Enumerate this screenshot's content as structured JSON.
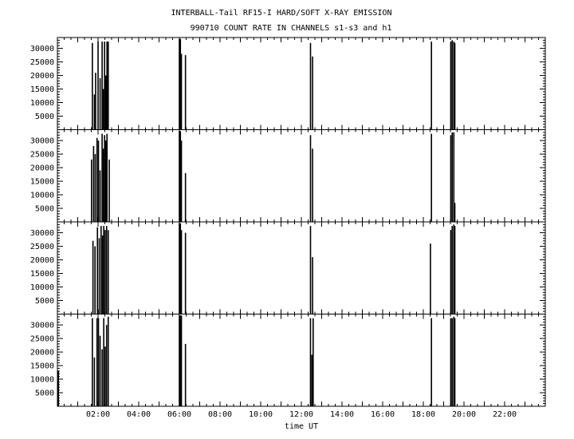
{
  "chart_data": {
    "type": "bar",
    "title": "INTERBALL-Tail RF15-I HARD/SOFT X-RAY EMISSION",
    "subtitle": "990710  COUNT RATE IN CHANNELS s1-s3 and h1",
    "xlabel": "time UT",
    "x_unit": "hours UT",
    "xlim": [
      0,
      24
    ],
    "ylim": [
      0,
      34000
    ],
    "x_ticks": [
      {
        "h": 2,
        "label": "02:00"
      },
      {
        "h": 4,
        "label": "04:00"
      },
      {
        "h": 6,
        "label": "06:00"
      },
      {
        "h": 8,
        "label": "08:00"
      },
      {
        "h": 10,
        "label": "10:00"
      },
      {
        "h": 12,
        "label": "12:00"
      },
      {
        "h": 14,
        "label": "14:00"
      },
      {
        "h": 16,
        "label": "16:00"
      },
      {
        "h": 18,
        "label": "18:00"
      },
      {
        "h": 20,
        "label": "20:00"
      },
      {
        "h": 22,
        "label": "22:00"
      }
    ],
    "y_ticks": [
      {
        "v": 5000,
        "label": "5000"
      },
      {
        "v": 10000,
        "label": "10000"
      },
      {
        "v": 15000,
        "label": "15000"
      },
      {
        "v": 20000,
        "label": "20000"
      },
      {
        "v": 25000,
        "label": "25000"
      },
      {
        "v": 30000,
        "label": "30000"
      }
    ],
    "panels": [
      {
        "spikes": [
          {
            "x": 1.72,
            "y": 32000
          },
          {
            "x": 1.82,
            "y": 13000
          },
          {
            "x": 1.88,
            "y": 21000
          },
          {
            "x": 2.0,
            "y": 32500
          },
          {
            "x": 2.1,
            "y": 19000
          },
          {
            "x": 2.2,
            "y": 32500
          },
          {
            "x": 2.26,
            "y": 15000
          },
          {
            "x": 2.32,
            "y": 32500
          },
          {
            "x": 2.38,
            "y": 20000
          },
          {
            "x": 2.44,
            "y": 32500
          },
          {
            "x": 2.5,
            "y": 32500
          },
          {
            "x": 6.0,
            "y": 33500
          },
          {
            "x": 6.05,
            "y": 33500
          },
          {
            "x": 6.1,
            "y": 28000
          },
          {
            "x": 6.3,
            "y": 27500
          },
          {
            "x": 12.45,
            "y": 32000
          },
          {
            "x": 12.55,
            "y": 27000
          },
          {
            "x": 18.4,
            "y": 32500
          },
          {
            "x": 19.35,
            "y": 32500
          },
          {
            "x": 19.42,
            "y": 33000
          },
          {
            "x": 19.5,
            "y": 32500
          },
          {
            "x": 19.55,
            "y": 32000
          }
        ]
      },
      {
        "spikes": [
          {
            "x": 1.68,
            "y": 23000
          },
          {
            "x": 1.78,
            "y": 28000
          },
          {
            "x": 1.86,
            "y": 25000
          },
          {
            "x": 1.95,
            "y": 31000
          },
          {
            "x": 2.02,
            "y": 30000
          },
          {
            "x": 2.1,
            "y": 19000
          },
          {
            "x": 2.2,
            "y": 32500
          },
          {
            "x": 2.26,
            "y": 27000
          },
          {
            "x": 2.32,
            "y": 32000
          },
          {
            "x": 2.38,
            "y": 30000
          },
          {
            "x": 2.44,
            "y": 32500
          },
          {
            "x": 2.55,
            "y": 23000
          },
          {
            "x": 6.0,
            "y": 33500
          },
          {
            "x": 6.05,
            "y": 33500
          },
          {
            "x": 6.1,
            "y": 30000
          },
          {
            "x": 6.3,
            "y": 18000
          },
          {
            "x": 12.45,
            "y": 32000
          },
          {
            "x": 12.55,
            "y": 27000
          },
          {
            "x": 18.4,
            "y": 32500
          },
          {
            "x": 19.35,
            "y": 32000
          },
          {
            "x": 19.42,
            "y": 33000
          },
          {
            "x": 19.5,
            "y": 33000
          },
          {
            "x": 19.55,
            "y": 7000
          }
        ]
      },
      {
        "spikes": [
          {
            "x": 1.75,
            "y": 27000
          },
          {
            "x": 1.85,
            "y": 25000
          },
          {
            "x": 1.97,
            "y": 32000
          },
          {
            "x": 2.06,
            "y": 28000
          },
          {
            "x": 2.15,
            "y": 32500
          },
          {
            "x": 2.22,
            "y": 29000
          },
          {
            "x": 2.28,
            "y": 32500
          },
          {
            "x": 2.35,
            "y": 31000
          },
          {
            "x": 2.42,
            "y": 32500
          },
          {
            "x": 2.5,
            "y": 31000
          },
          {
            "x": 6.0,
            "y": 33500
          },
          {
            "x": 6.05,
            "y": 33500
          },
          {
            "x": 6.1,
            "y": 31000
          },
          {
            "x": 6.3,
            "y": 30000
          },
          {
            "x": 12.45,
            "y": 32500
          },
          {
            "x": 12.55,
            "y": 21000
          },
          {
            "x": 18.35,
            "y": 26000
          },
          {
            "x": 19.35,
            "y": 31000
          },
          {
            "x": 19.42,
            "y": 32500
          },
          {
            "x": 19.5,
            "y": 33000
          },
          {
            "x": 19.55,
            "y": 32500
          }
        ]
      },
      {
        "spikes": [
          {
            "x": 0.05,
            "y": 13000
          },
          {
            "x": 1.72,
            "y": 32500
          },
          {
            "x": 1.82,
            "y": 18000
          },
          {
            "x": 1.95,
            "y": 32500
          },
          {
            "x": 2.02,
            "y": 32500
          },
          {
            "x": 2.1,
            "y": 26000
          },
          {
            "x": 2.2,
            "y": 21000
          },
          {
            "x": 2.28,
            "y": 32500
          },
          {
            "x": 2.35,
            "y": 22000
          },
          {
            "x": 2.42,
            "y": 30000
          },
          {
            "x": 2.5,
            "y": 33000
          },
          {
            "x": 6.0,
            "y": 33500
          },
          {
            "x": 6.05,
            "y": 33500
          },
          {
            "x": 6.1,
            "y": 33500
          },
          {
            "x": 6.3,
            "y": 23000
          },
          {
            "x": 12.45,
            "y": 32500
          },
          {
            "x": 12.52,
            "y": 19000
          },
          {
            "x": 12.58,
            "y": 32500
          },
          {
            "x": 18.4,
            "y": 32500
          },
          {
            "x": 19.35,
            "y": 32500
          },
          {
            "x": 19.42,
            "y": 32500
          },
          {
            "x": 19.5,
            "y": 33000
          },
          {
            "x": 19.55,
            "y": 32500
          }
        ]
      }
    ]
  }
}
